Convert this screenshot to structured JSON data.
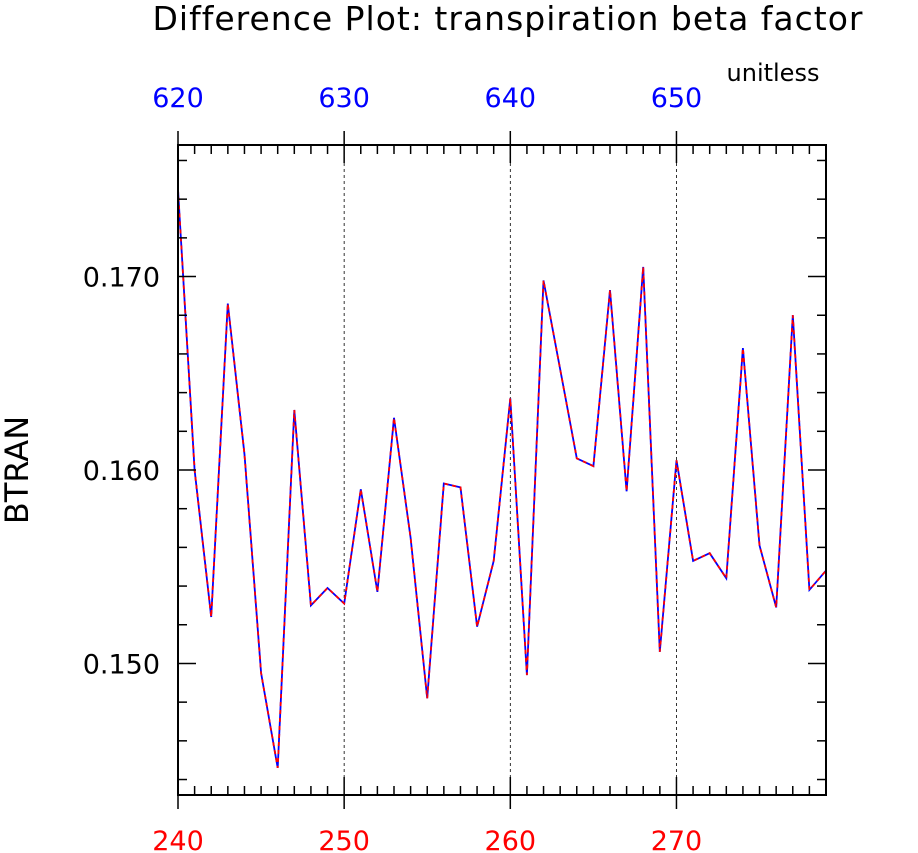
{
  "chart_data": {
    "type": "line",
    "title": "Difference Plot: transpiration beta factor",
    "units": "unitless",
    "ylabel": "BTRAN",
    "xlim": [
      240,
      279
    ],
    "ylim": [
      0.1432,
      0.1768
    ],
    "x_bottom_ticks": [
      "240",
      "250",
      "260",
      "270"
    ],
    "x_top_ticks": [
      "620",
      "630",
      "640",
      "650"
    ],
    "y_ticks": [
      "0.150",
      "0.160",
      "0.170"
    ],
    "grid": "vertical dashed lines at bottom-axis major ticks",
    "bottom_axis_color": "#ff0000",
    "top_axis_color": "#0000ff",
    "series": [
      {
        "color": "#0000ff",
        "style": "solid",
        "x": [
          240,
          241,
          242,
          243,
          244,
          245,
          246,
          247,
          248,
          249,
          250,
          251,
          252,
          253,
          254,
          255,
          256,
          257,
          258,
          259,
          260,
          261,
          262,
          263,
          264,
          265,
          266,
          267,
          268,
          269,
          270,
          271,
          272,
          273,
          274,
          275,
          276,
          277,
          278,
          279
        ],
        "values": [
          0.1745,
          0.16,
          0.1524,
          0.1686,
          0.1608,
          0.1495,
          0.1446,
          0.1631,
          0.153,
          0.1539,
          0.1531,
          0.159,
          0.1537,
          0.1627,
          0.1565,
          0.1482,
          0.1593,
          0.1591,
          0.1519,
          0.1553,
          0.1637,
          0.1494,
          0.1698,
          0.1652,
          0.1606,
          0.1602,
          0.1693,
          0.1589,
          0.1705,
          0.1506,
          0.1605,
          0.1553,
          0.1557,
          0.1544,
          0.1663,
          0.1561,
          0.1529,
          0.168,
          0.1538,
          0.1548
        ]
      },
      {
        "color": "#ff0000",
        "style": "dashed",
        "x": [
          240,
          241,
          242,
          243,
          244,
          245,
          246,
          247,
          248,
          249,
          250,
          251,
          252,
          253,
          254,
          255,
          256,
          257,
          258,
          259,
          260,
          261,
          262,
          263,
          264,
          265,
          266,
          267,
          268,
          269,
          270,
          271,
          272,
          273,
          274,
          275,
          276,
          277,
          278,
          279
        ],
        "values": [
          0.1745,
          0.16,
          0.1524,
          0.1686,
          0.1608,
          0.1495,
          0.1446,
          0.1631,
          0.153,
          0.1539,
          0.1531,
          0.159,
          0.1537,
          0.1627,
          0.1565,
          0.1482,
          0.1593,
          0.1591,
          0.1519,
          0.1553,
          0.1637,
          0.1494,
          0.1698,
          0.1652,
          0.1606,
          0.1602,
          0.1693,
          0.1589,
          0.1705,
          0.1506,
          0.1605,
          0.1553,
          0.1557,
          0.1544,
          0.1663,
          0.1561,
          0.1529,
          0.168,
          0.1538,
          0.1548
        ]
      }
    ]
  }
}
